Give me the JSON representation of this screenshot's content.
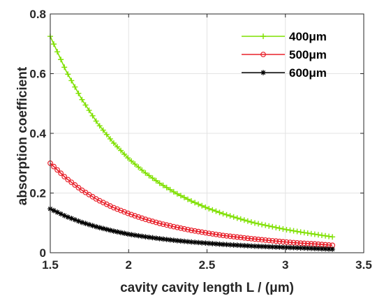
{
  "chart_data": {
    "type": "line",
    "title": "",
    "xlabel": "cavity cavity length L / (μm)",
    "ylabel": "absorption coefficient",
    "xlim": [
      1.5,
      3.5
    ],
    "ylim": [
      0,
      0.8
    ],
    "xticks": [
      "1.5",
      "2",
      "2.5",
      "3",
      "3.5"
    ],
    "yticks": [
      "0",
      "0.2",
      "0.4",
      "0.6",
      "0.8"
    ],
    "grid": true,
    "legend_position": "top-right",
    "series": [
      {
        "name": "400μm",
        "color": "#7fe000",
        "marker": "plus",
        "x": [
          1.5,
          1.6,
          1.7,
          1.8,
          1.9,
          2.0,
          2.1,
          2.2,
          2.3,
          2.4,
          2.5,
          2.6,
          2.7,
          2.8,
          2.9,
          3.0,
          3.1,
          3.2,
          3.3
        ],
        "y": [
          0.725,
          0.61,
          0.515,
          0.435,
          0.37,
          0.315,
          0.27,
          0.232,
          0.2,
          0.173,
          0.15,
          0.131,
          0.115,
          0.1,
          0.089,
          0.078,
          0.069,
          0.061,
          0.053
        ]
      },
      {
        "name": "500μm",
        "color": "#e8202a",
        "marker": "circle",
        "x": [
          1.5,
          1.6,
          1.7,
          1.8,
          1.9,
          2.0,
          2.1,
          2.2,
          2.3,
          2.4,
          2.5,
          2.6,
          2.7,
          2.8,
          2.9,
          3.0,
          3.1,
          3.2,
          3.3
        ],
        "y": [
          0.3,
          0.25,
          0.21,
          0.178,
          0.152,
          0.131,
          0.113,
          0.098,
          0.086,
          0.075,
          0.066,
          0.058,
          0.052,
          0.046,
          0.041,
          0.036,
          0.032,
          0.029,
          0.025
        ]
      },
      {
        "name": "600μm",
        "color": "#000000",
        "marker": "star",
        "x": [
          1.5,
          1.6,
          1.7,
          1.8,
          1.9,
          2.0,
          2.1,
          2.2,
          2.3,
          2.4,
          2.5,
          2.6,
          2.7,
          2.8,
          2.9,
          3.0,
          3.1,
          3.2,
          3.3
        ],
        "y": [
          0.147,
          0.122,
          0.102,
          0.086,
          0.073,
          0.062,
          0.054,
          0.047,
          0.041,
          0.036,
          0.032,
          0.028,
          0.025,
          0.022,
          0.02,
          0.018,
          0.016,
          0.014,
          0.012
        ]
      }
    ]
  }
}
